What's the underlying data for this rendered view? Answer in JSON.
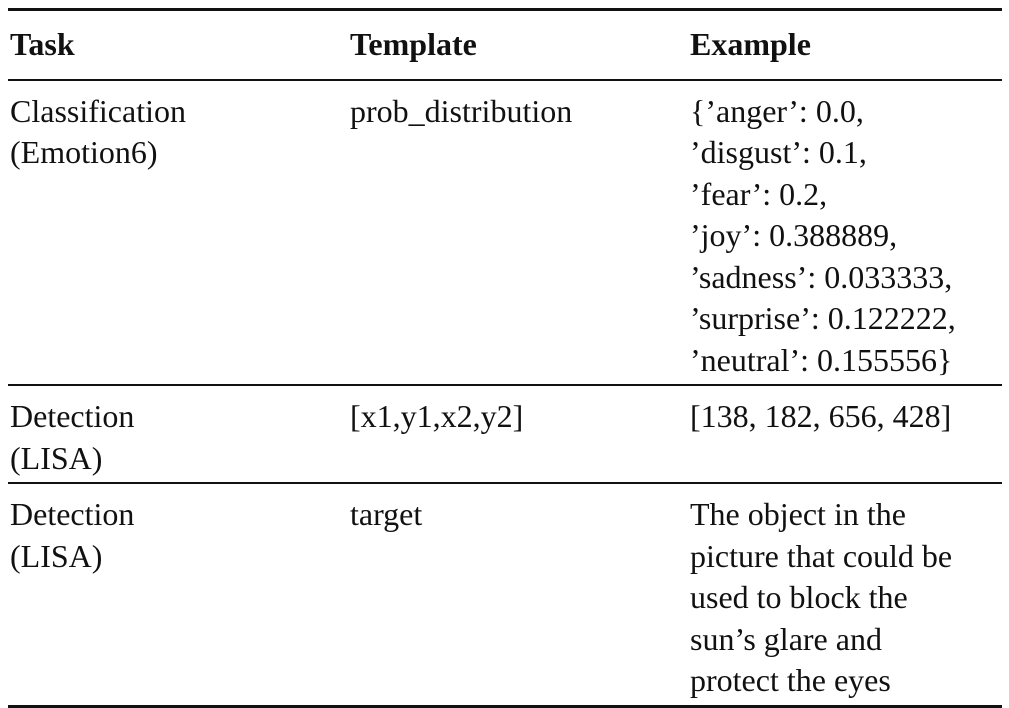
{
  "table": {
    "headers": [
      "Task",
      "Template",
      "Example"
    ],
    "rows": [
      {
        "task": [
          "Classification",
          "(Emotion6)"
        ],
        "template": [
          "prob_distribution"
        ],
        "example": [
          "{’anger’: 0.0,",
          "’disgust’: 0.1,",
          "’fear’: 0.2,",
          "’joy’: 0.388889,",
          "’sadness’: 0.033333,",
          "’surprise’: 0.122222,",
          "’neutral’: 0.155556}"
        ]
      },
      {
        "task": [
          "Detection",
          "(LISA)"
        ],
        "template": [
          "[x1,y1,x2,y2]"
        ],
        "example": [
          "[138, 182, 656, 428]"
        ]
      },
      {
        "task": [
          "Detection",
          "(LISA)"
        ],
        "template": [
          "target"
        ],
        "example": [
          "The object in the",
          "picture that could be",
          "used to block the",
          "sun’s glare and",
          "protect the eyes"
        ]
      }
    ]
  }
}
